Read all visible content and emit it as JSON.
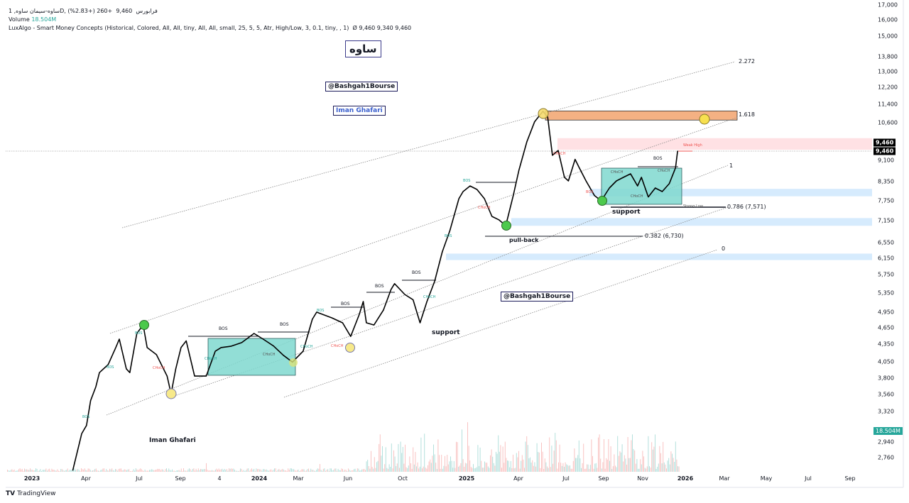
{
  "header": {
    "symbol": "ساوه-سیمان ساوه, 1D, فرابورس",
    "last": "9,460",
    "change": "+260 (+2.83%)",
    "volume_label": "Volume",
    "volume_value": "18.504M",
    "indicator": "LuxAlgo - Smart Money Concepts (Historical, Colored, All, All, tiny, All, All, small, 25, 5, 5, Atr, High/Low, 3, 0.1, tiny, , 1)",
    "indicator_values": "Ø  9,460  9,340  9,460"
  },
  "watermarks": {
    "ticker": "ساوه",
    "channel": "@Bashgah1Bourse",
    "author": "Iman Ghafari"
  },
  "colors": {
    "price_line": "#000000",
    "bull": "#26a69a",
    "bear": "#ef5350",
    "demand_zone": "#bbdefb",
    "supply_zone": "#ffcdd2",
    "target_zone": "#f4b183",
    "range_box": "#7fd8cf"
  },
  "chart_data": {
    "type": "line",
    "title": "",
    "xlabel": "",
    "ylabel": "",
    "y_scale": "log",
    "ylim": [
      2650,
      17000
    ],
    "grid": false,
    "legend": "none",
    "y_ticks": [
      "17,000",
      "16,000",
      "15,000",
      "13,800",
      "13,000",
      "12,200",
      "11,400",
      "10,600",
      "9,100",
      "8,350",
      "7,750",
      "7,150",
      "6,550",
      "6,150",
      "5,750",
      "5,350",
      "4,950",
      "4,650",
      "4,350",
      "4,050",
      "3,800",
      "3,560",
      "3,320",
      "2,940",
      "2,760"
    ],
    "x_ticks": [
      "2023",
      "Apr",
      "Jul",
      "Sep",
      "4",
      "2024",
      "Mar",
      "Jun",
      "Oct",
      "2025",
      "Apr",
      "Jul",
      "Sep",
      "Nov",
      "2026",
      "Mar",
      "May",
      "Jul",
      "Sep"
    ],
    "last_price_labels": [
      "9,460",
      "9,460"
    ],
    "volume_last": "18.504M",
    "series": [
      {
        "points": [
          [
            "2023-03-10",
            2620
          ],
          [
            "2023-03-25",
            3040
          ],
          [
            "2023-04-02",
            3140
          ],
          [
            "2023-04-09",
            3470
          ],
          [
            "2023-04-18",
            3669
          ],
          [
            "2023-04-24",
            3883
          ],
          [
            "2023-05-09",
            4010
          ],
          [
            "2023-05-22",
            4293
          ],
          [
            "2023-05-28",
            4441
          ],
          [
            "2023-06-09",
            3941
          ],
          [
            "2023-06-15",
            3883
          ],
          [
            "2023-06-27",
            4544
          ],
          [
            "2023-07-07",
            4701
          ],
          [
            "2023-07-13",
            4293
          ],
          [
            "2023-07-27",
            4173
          ],
          [
            "2023-08-12",
            3829
          ],
          [
            "2023-08-18",
            3566
          ],
          [
            "2023-08-25",
            3941
          ],
          [
            "2023-09-02",
            4293
          ],
          [
            "2023-09-10",
            4410
          ],
          [
            "2023-09-23",
            3829
          ],
          [
            "2023-10-11",
            3829
          ],
          [
            "2023-10-25",
            4230
          ],
          [
            "2023-11-03",
            4293
          ],
          [
            "2023-11-18",
            4315
          ],
          [
            "2023-12-05",
            4380
          ],
          [
            "2023-12-24",
            4544
          ],
          [
            "2024-01-07",
            4441
          ],
          [
            "2024-01-23",
            4320
          ],
          [
            "2024-02-07",
            4163
          ],
          [
            "2024-02-21",
            4050
          ],
          [
            "2024-03-10",
            4230
          ],
          [
            "2024-03-27",
            4810
          ],
          [
            "2024-04-04",
            4949
          ],
          [
            "2024-05-02",
            4837
          ],
          [
            "2024-05-22",
            4742
          ],
          [
            "2024-06-07",
            4490
          ],
          [
            "2024-06-26",
            4900
          ],
          [
            "2024-07-05",
            5165
          ],
          [
            "2024-07-12",
            4742
          ],
          [
            "2024-07-29",
            4700
          ],
          [
            "2024-08-19",
            4990
          ],
          [
            "2024-09-05",
            5420
          ],
          [
            "2024-09-13",
            5549
          ],
          [
            "2024-10-04",
            5314
          ],
          [
            "2024-10-16",
            5200
          ],
          [
            "2024-10-26",
            4742
          ],
          [
            "2024-11-05",
            5165
          ],
          [
            "2024-11-16",
            5600
          ],
          [
            "2024-11-27",
            6305
          ],
          [
            "2024-12-08",
            6866
          ],
          [
            "2024-12-21",
            7806
          ],
          [
            "2024-12-27",
            8032
          ],
          [
            "2025-01-07",
            8215
          ],
          [
            "2025-01-19",
            8100
          ],
          [
            "2025-02-01",
            7806
          ],
          [
            "2025-02-14",
            7270
          ],
          [
            "2025-02-26",
            7170
          ],
          [
            "2025-03-10",
            7005
          ],
          [
            "2025-03-23",
            7900
          ],
          [
            "2025-04-02",
            8747
          ],
          [
            "2025-04-17",
            9800
          ],
          [
            "2025-05-02",
            10630
          ],
          [
            "2025-05-18",
            11090
          ],
          [
            "2025-05-27",
            10830
          ],
          [
            "2025-06-05",
            9290
          ],
          [
            "2025-06-16",
            9470
          ],
          [
            "2025-06-28",
            8504
          ],
          [
            "2025-07-05",
            8381
          ],
          [
            "2025-07-16",
            9140
          ],
          [
            "2025-07-22",
            8870
          ],
          [
            "2025-08-03",
            8381
          ],
          [
            "2025-08-17",
            7900
          ],
          [
            "2025-08-28",
            7740
          ],
          [
            "2025-09-10",
            8147
          ],
          [
            "2025-09-21",
            8381
          ],
          [
            "2025-10-02",
            8504
          ],
          [
            "2025-10-13",
            8624
          ],
          [
            "2025-10-24",
            8215
          ],
          [
            "2025-10-30",
            8504
          ],
          [
            "2025-11-09",
            7860
          ],
          [
            "2025-11-19",
            8147
          ],
          [
            "2025-11-29",
            8030
          ],
          [
            "2025-12-09",
            8290
          ],
          [
            "2025-12-18",
            8830
          ],
          [
            "2025-12-21",
            9460
          ]
        ]
      }
    ],
    "zones": [
      {
        "kind": "target",
        "from": 10700,
        "to": 11100
      },
      {
        "kind": "supply",
        "from": 9500,
        "to": 9950
      },
      {
        "kind": "demand",
        "from": 7880,
        "to": 8120
      },
      {
        "kind": "demand",
        "from": 7000,
        "to": 7220
      },
      {
        "kind": "demand",
        "from": 6100,
        "to": 6260
      }
    ],
    "fib_labels": [
      "2.272",
      "1.618",
      "1",
      "0"
    ],
    "annotations": {
      "bos": "BOS",
      "choch": "CHoCH",
      "weak_high": "Weak High",
      "strong_low": "Strong Low",
      "support": "support",
      "pull_back": "pull-back",
      "fib_382": "0.382 (6,730)",
      "fib_786": "0.786 (7,571)"
    }
  },
  "footer": {
    "brand": "TradingView",
    "brand_mark": "TV"
  }
}
